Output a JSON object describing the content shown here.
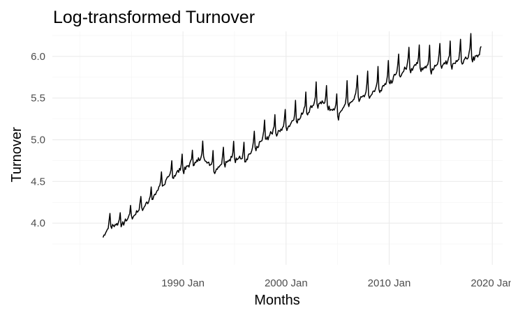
{
  "chart_data": {
    "type": "line",
    "title": "Log-transformed Turnover",
    "xlabel": "Months",
    "ylabel": "Turnover",
    "x_tick_labels": [
      "1990 Jan",
      "2000 Jan",
      "2010 Jan",
      "2020 Jan"
    ],
    "x_ticks": [
      1990,
      2000,
      2010,
      2020
    ],
    "y_ticks": [
      4.0,
      4.5,
      5.0,
      5.5,
      6.0
    ],
    "y_tick_labels": [
      "4.0",
      "4.5",
      "5.0",
      "5.5",
      "6.0"
    ],
    "xlim": [
      "1977-05",
      "2021-01"
    ],
    "ylim": [
      3.5,
      6.3
    ],
    "grid": true,
    "legend": "none",
    "series_color": "#000000",
    "series": [
      {
        "x_start": "1982-04",
        "frequency": "monthly",
        "trend_annual": [
          3.8,
          3.98,
          3.99,
          4.08,
          4.18,
          4.3,
          4.47,
          4.58,
          4.65,
          4.72,
          4.8,
          4.65,
          4.72,
          4.8,
          4.75,
          4.9,
          5.03,
          5.1,
          5.15,
          5.25,
          5.35,
          5.45,
          5.42,
          5.3,
          5.45,
          5.52,
          5.55,
          5.62,
          5.7,
          5.8,
          5.88,
          5.9,
          5.85,
          5.92,
          5.93,
          5.95,
          6.0
        ],
        "seasonal_pattern": [
          -0.02,
          -0.06,
          -0.02,
          -0.03,
          -0.01,
          0.0,
          0.01,
          0.0,
          0.01,
          0.04,
          0.1,
          0.26
        ],
        "x_end": "2018-12",
        "last_value": 6.12
      }
    ]
  }
}
